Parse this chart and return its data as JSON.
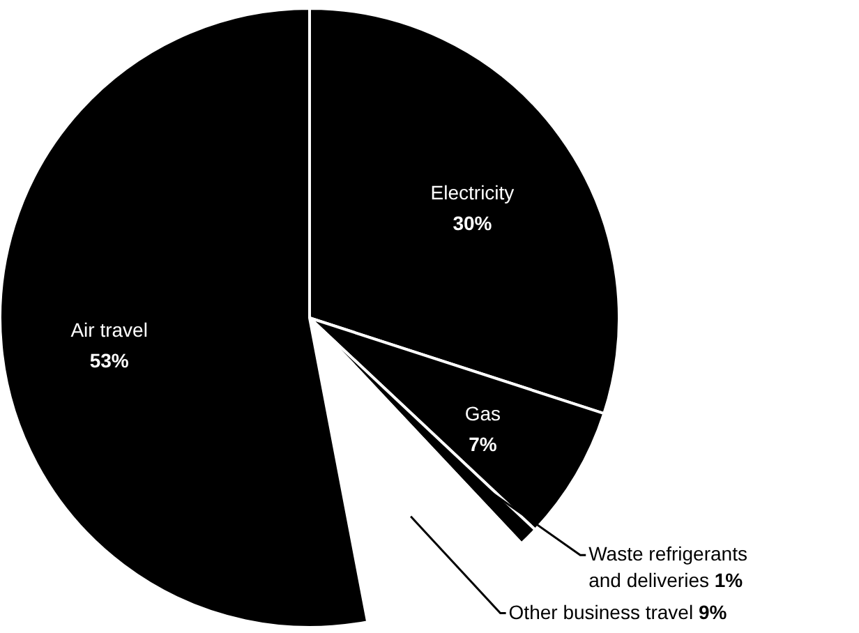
{
  "chart_data": {
    "type": "pie",
    "categories": [
      "Electricity",
      "Gas",
      "Waste refrigerants and deliveries",
      "Other business travel",
      "Air travel"
    ],
    "values": [
      30,
      7,
      1,
      9,
      53
    ],
    "colors": [
      "#000000",
      "#000000",
      "#000000",
      "#ffffff",
      "#000000"
    ],
    "value_labels": [
      "30%",
      "7%",
      "1%",
      "9%",
      "53%"
    ]
  }
}
